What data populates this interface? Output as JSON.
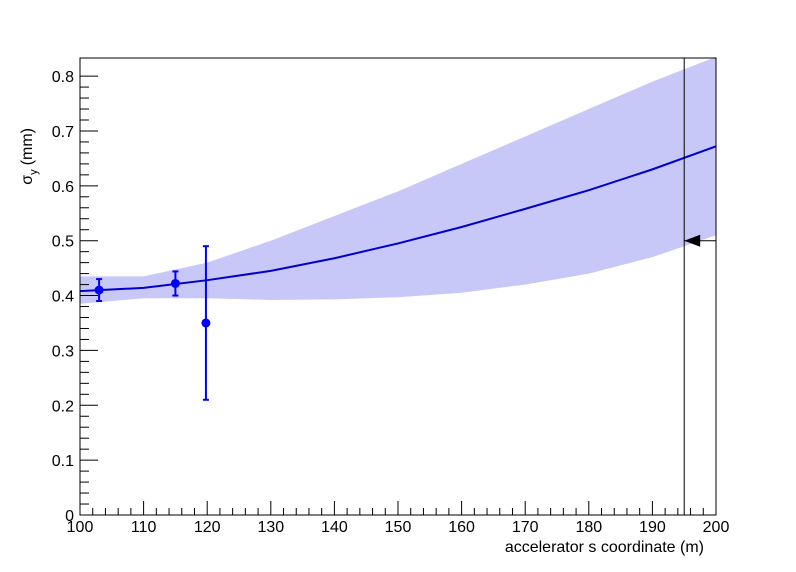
{
  "chart_data": {
    "type": "scatter",
    "x_label": "accelerator s coordinate (m)",
    "y_label": {
      "symbol": "σ",
      "subscript": "y",
      "unit": "(mm)"
    },
    "xlim": [
      100,
      200
    ],
    "ylim": [
      0,
      0.833
    ],
    "xticks": [
      100,
      110,
      120,
      130,
      140,
      150,
      160,
      170,
      180,
      190,
      200
    ],
    "yticks": [
      0,
      0.1,
      0.2,
      0.3,
      0.4,
      0.5,
      0.6,
      0.7,
      0.8
    ],
    "points": {
      "color": "#0000ff",
      "x": [
        103,
        115,
        119.8
      ],
      "values": [
        0.41,
        0.422,
        0.35
      ],
      "errors": [
        0.02,
        0.022,
        0.14
      ]
    },
    "fit": {
      "color": "#0000cc",
      "band_color": "#c8c8f8",
      "x": [
        100,
        110,
        120,
        130,
        140,
        150,
        160,
        170,
        180,
        190,
        200
      ],
      "values": [
        0.408,
        0.414,
        0.428,
        0.445,
        0.468,
        0.495,
        0.525,
        0.558,
        0.592,
        0.63,
        0.672
      ],
      "upper": [
        0.435,
        0.435,
        0.46,
        0.5,
        0.545,
        0.59,
        0.64,
        0.69,
        0.74,
        0.79,
        0.835
      ],
      "lower": [
        0.385,
        0.395,
        0.395,
        0.392,
        0.393,
        0.397,
        0.405,
        0.42,
        0.44,
        0.47,
        0.51
      ]
    },
    "marker": {
      "x": 195,
      "y": 0.5
    }
  }
}
